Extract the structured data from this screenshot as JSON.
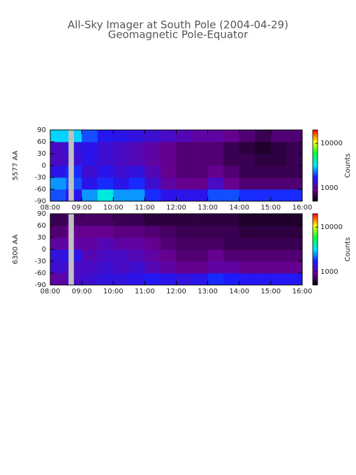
{
  "title": "All-Sky Imager at South Pole (2004-04-29)",
  "subtitle": "Geomagnetic Pole-Equator",
  "chart_data": [
    {
      "type": "heatmap",
      "ylabel": "5577 AA",
      "colorbar_label": "Counts",
      "x_bins": [
        8,
        8.5,
        9,
        9.5,
        10,
        10.5,
        11,
        11.5,
        12,
        12.5,
        13,
        13.5,
        14,
        14.5,
        15,
        15.5,
        16
      ],
      "y_bins": [
        -90,
        -60,
        -30,
        0,
        30,
        60,
        90
      ],
      "values": [
        [
          2000,
          1500,
          2500,
          3500,
          2500,
          2500,
          1800,
          1500,
          1500,
          1500,
          2000,
          2000,
          1800,
          1800,
          1800,
          1800
        ],
        [
          2500,
          2000,
          1500,
          1800,
          1500,
          1800,
          1300,
          1000,
          900,
          900,
          1200,
          900,
          800,
          800,
          800,
          800
        ],
        [
          1500,
          1800,
          1300,
          1500,
          1300,
          1400,
          1100,
          900,
          800,
          800,
          900,
          800,
          700,
          700,
          700,
          700
        ],
        [
          1200,
          1300,
          1500,
          1300,
          1200,
          1100,
          1000,
          900,
          800,
          800,
          800,
          700,
          700,
          650,
          650,
          700
        ],
        [
          1200,
          1400,
          1500,
          1300,
          1200,
          1100,
          1000,
          900,
          800,
          800,
          800,
          700,
          650,
          600,
          650,
          700
        ],
        [
          3000,
          3000,
          2000,
          1600,
          1500,
          1400,
          1300,
          1200,
          1100,
          1000,
          1000,
          900,
          800,
          700,
          800,
          800
        ]
      ],
      "gap": [
        8.58,
        8.75
      ],
      "xlim": [
        8,
        16
      ],
      "xticks": [
        {
          "value": 8,
          "label": "08:00"
        },
        {
          "value": 9,
          "label": "09:00"
        },
        {
          "value": 10,
          "label": "10:00"
        },
        {
          "value": 11,
          "label": "11:00"
        },
        {
          "value": 12,
          "label": "12:00"
        },
        {
          "value": 13,
          "label": "13:00"
        },
        {
          "value": 14,
          "label": "14:00"
        },
        {
          "value": 15,
          "label": "15:00"
        },
        {
          "value": 16,
          "label": "16:00"
        }
      ],
      "ylim": [
        -90,
        90
      ],
      "yticks": [
        -90,
        -60,
        -30,
        0,
        30,
        60,
        90
      ],
      "clim": [
        500,
        20000
      ],
      "cscale": "log",
      "cticks": [
        1000,
        10000
      ],
      "colormap": [
        "#000000",
        "#6a0096",
        "#1a1aff",
        "#00e5ff",
        "#00ff40",
        "#ffff00",
        "#ff0000"
      ]
    },
    {
      "type": "heatmap",
      "ylabel": "6300 AA",
      "colorbar_label": "Counts",
      "x_bins": [
        8,
        8.5,
        9,
        9.5,
        10,
        10.5,
        11,
        11.5,
        12,
        12.5,
        13,
        13.5,
        14,
        14.5,
        15,
        15.5,
        16
      ],
      "y_bins": [
        -90,
        -60,
        -30,
        0,
        30,
        60,
        90
      ],
      "values": [
        [
          1000,
          1200,
          1300,
          1400,
          1400,
          1500,
          1600,
          1500,
          1400,
          1500,
          1800,
          1700,
          1600,
          1600,
          1600,
          1600
        ],
        [
          1300,
          1200,
          1200,
          1300,
          1200,
          1300,
          1100,
          1000,
          900,
          900,
          1000,
          1000,
          900,
          900,
          900,
          900
        ],
        [
          1400,
          1500,
          1100,
          1200,
          1200,
          1100,
          1000,
          900,
          800,
          800,
          900,
          800,
          800,
          800,
          800,
          800
        ],
        [
          1000,
          1000,
          1000,
          1100,
          1000,
          1000,
          900,
          800,
          750,
          750,
          750,
          700,
          700,
          700,
          700,
          700
        ],
        [
          800,
          900,
          900,
          900,
          850,
          850,
          800,
          750,
          700,
          700,
          700,
          700,
          650,
          650,
          650,
          650
        ],
        [
          700,
          750,
          750,
          750,
          700,
          700,
          650,
          650,
          650,
          650,
          650,
          650,
          600,
          600,
          600,
          600
        ]
      ],
      "gap": [
        8.58,
        8.75
      ],
      "xlim": [
        8,
        16
      ],
      "xticks": [
        {
          "value": 8,
          "label": "08:00"
        },
        {
          "value": 9,
          "label": "09:00"
        },
        {
          "value": 10,
          "label": "10:00"
        },
        {
          "value": 11,
          "label": "11:00"
        },
        {
          "value": 12,
          "label": "12:00"
        },
        {
          "value": 13,
          "label": "13:00"
        },
        {
          "value": 14,
          "label": "14:00"
        },
        {
          "value": 15,
          "label": "15:00"
        },
        {
          "value": 16,
          "label": "16:00"
        }
      ],
      "ylim": [
        -90,
        90
      ],
      "yticks": [
        -90,
        -60,
        -30,
        0,
        30,
        60,
        90
      ],
      "clim": [
        500,
        20000
      ],
      "cscale": "log",
      "cticks": [
        1000,
        10000
      ],
      "colormap": [
        "#000000",
        "#6a0096",
        "#1a1aff",
        "#00e5ff",
        "#00ff40",
        "#ffff00",
        "#ff0000"
      ]
    }
  ]
}
